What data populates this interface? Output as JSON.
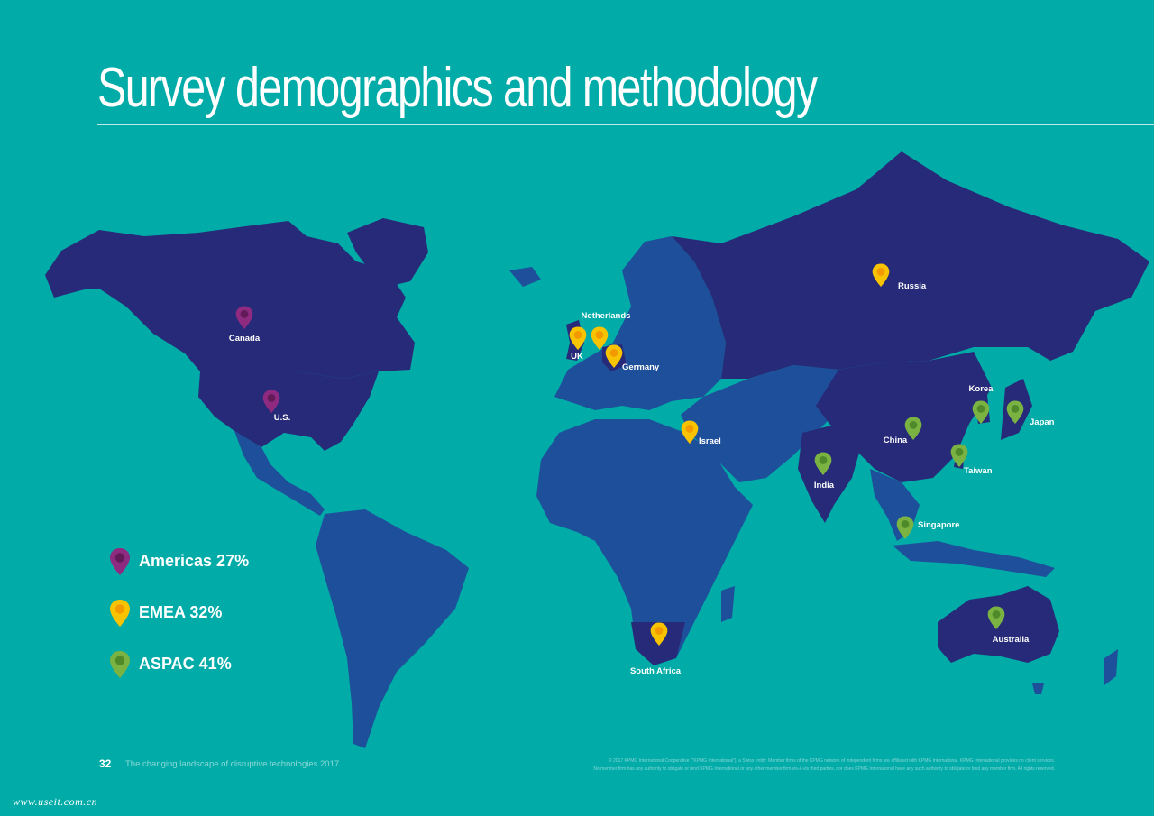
{
  "page": {
    "title": "Survey demographics and methodology",
    "page_number": "32",
    "footer_text": "The changing landscape of disruptive technologies  2017",
    "legal_line1": "© 2017 KPMG International Cooperative (\"KPMG International\"), a Swiss entity. Member firms of the KPMG network of independent firms are affiliated with KPMG International. KPMG International provides no client services.",
    "legal_line2": "No member firm has any authority to obligate or bind KPMG International or any other member firm vis-à-vis third parties, nor does KPMG International have any such authority to obligate or bind any member firm. All rights reserved.",
    "watermark": "www.useit.com.cn"
  },
  "colors": {
    "background": "#00aba8",
    "land": "#1e4f9a",
    "land_dark": "#262a78",
    "americas": "#8e2a80",
    "emea": "#f8c300",
    "aspac": "#7bb342"
  },
  "legend": [
    {
      "region": "americas",
      "label": "Americas 27%",
      "value": 27
    },
    {
      "region": "emea",
      "label": "EMEA 32%",
      "value": 32
    },
    {
      "region": "aspac",
      "label": "ASPAC 41%",
      "value": 41
    }
  ],
  "countries": [
    {
      "name": "Canada",
      "region": "americas"
    },
    {
      "name": "U.S.",
      "region": "americas"
    },
    {
      "name": "UK",
      "region": "emea"
    },
    {
      "name": "Netherlands",
      "region": "emea"
    },
    {
      "name": "Germany",
      "region": "emea"
    },
    {
      "name": "Russia",
      "region": "emea"
    },
    {
      "name": "Israel",
      "region": "emea"
    },
    {
      "name": "South Africa",
      "region": "emea"
    },
    {
      "name": "India",
      "region": "aspac"
    },
    {
      "name": "China",
      "region": "aspac"
    },
    {
      "name": "Korea",
      "region": "aspac"
    },
    {
      "name": "Japan",
      "region": "aspac"
    },
    {
      "name": "Taiwan",
      "region": "aspac"
    },
    {
      "name": "Singapore",
      "region": "aspac"
    },
    {
      "name": "Australia",
      "region": "aspac"
    }
  ]
}
